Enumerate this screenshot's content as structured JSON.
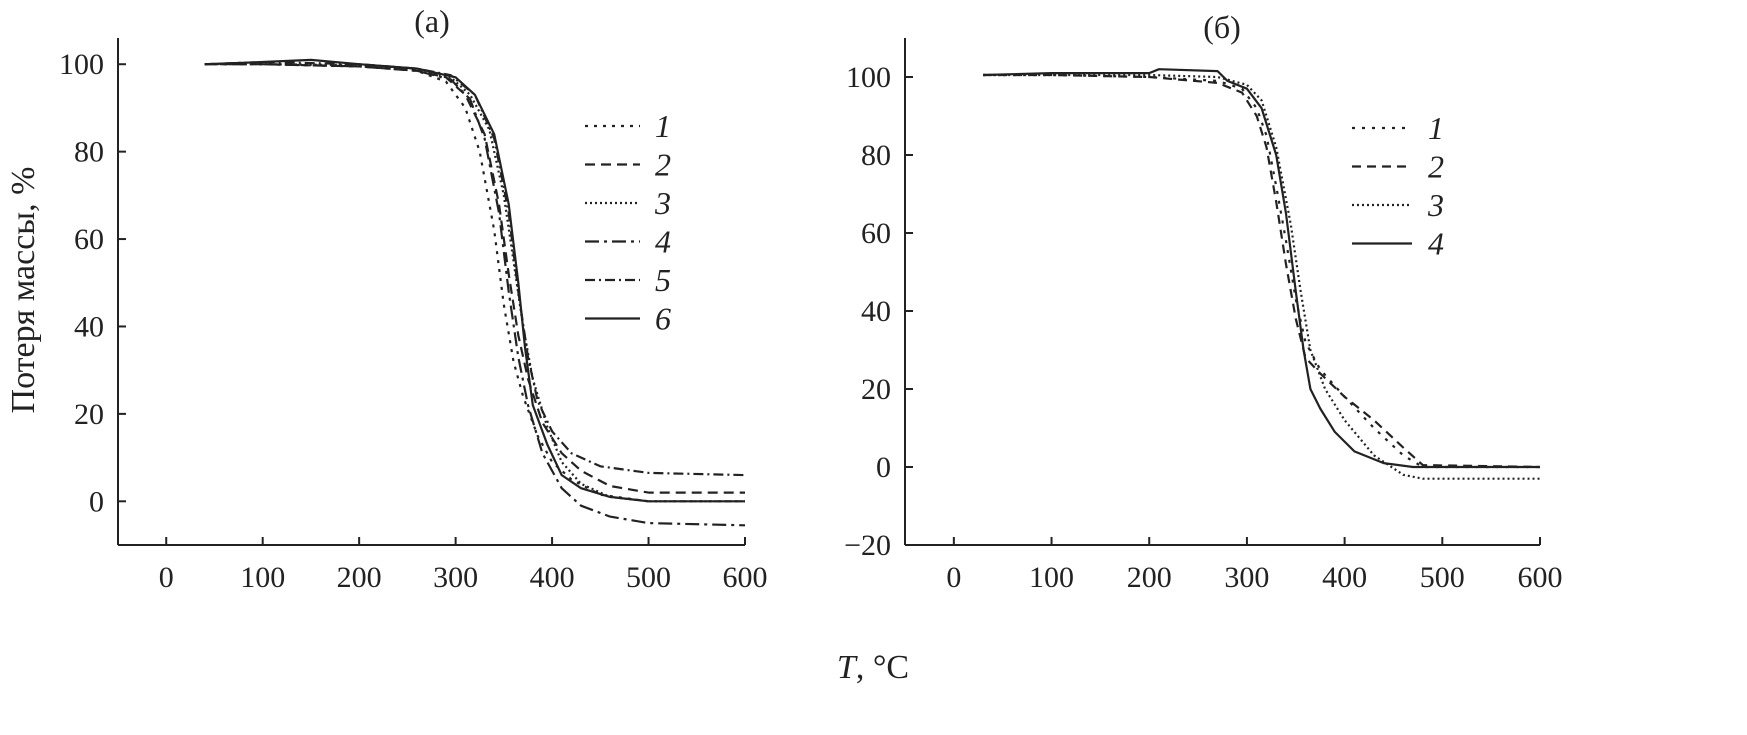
{
  "xlabel_var": "T",
  "xlabel_unit": ", °C",
  "ylabel": "Потеря массы, %",
  "chart_data": [
    {
      "type": "line",
      "panel_label": "(а)",
      "xlim": [
        -50,
        600
      ],
      "ylim": [
        -10,
        106
      ],
      "xticks": [
        0,
        100,
        200,
        300,
        400,
        500,
        600
      ],
      "yticks": [
        0,
        20,
        40,
        60,
        80,
        100
      ],
      "legend_position": "right",
      "series": [
        {
          "name": "1",
          "dash": "3,6",
          "x": [
            40,
            100,
            200,
            260,
            290,
            310,
            325,
            340,
            350,
            360,
            370,
            385,
            400,
            420,
            450,
            500,
            600
          ],
          "y": [
            100,
            100,
            99.5,
            98.5,
            96,
            90,
            80,
            62,
            45,
            32,
            24,
            15,
            9,
            5,
            1.5,
            0,
            0
          ]
        },
        {
          "name": "2",
          "dash": "10,6",
          "x": [
            40,
            100,
            200,
            260,
            290,
            310,
            330,
            345,
            355,
            365,
            375,
            390,
            410,
            430,
            460,
            500,
            600
          ],
          "y": [
            100,
            100,
            99.5,
            98.5,
            97,
            93,
            84,
            68,
            52,
            38,
            28,
            18,
            11,
            7,
            3.5,
            2,
            2
          ]
        },
        {
          "name": "3",
          "dash": "2,3",
          "x": [
            40,
            100,
            200,
            260,
            295,
            315,
            335,
            350,
            360,
            370,
            380,
            395,
            410,
            430,
            460,
            500,
            600
          ],
          "y": [
            100,
            100,
            99.8,
            99,
            97,
            93,
            85,
            70,
            55,
            40,
            28,
            17,
            9,
            4,
            1,
            0,
            0
          ]
        },
        {
          "name": "4",
          "dash": "14,5,3,5",
          "x": [
            40,
            100,
            200,
            260,
            295,
            315,
            330,
            345,
            355,
            365,
            375,
            390,
            410,
            430,
            460,
            500,
            600
          ],
          "y": [
            100,
            100,
            99.5,
            98.5,
            96.5,
            92,
            83,
            66,
            48,
            33,
            22,
            11,
            3,
            -1,
            -3.5,
            -5,
            -5.5
          ]
        },
        {
          "name": "5",
          "dash": "10,4,2,4",
          "x": [
            40,
            100,
            200,
            260,
            295,
            320,
            340,
            355,
            365,
            375,
            385,
            400,
            420,
            450,
            500,
            600
          ],
          "y": [
            100,
            100.5,
            100,
            99,
            97.5,
            93,
            83,
            66,
            48,
            33,
            23,
            16,
            11,
            8,
            6.5,
            6
          ]
        },
        {
          "name": "6",
          "dash": "",
          "x": [
            40,
            100,
            150,
            200,
            260,
            300,
            320,
            340,
            355,
            365,
            372,
            380,
            395,
            410,
            430,
            460,
            500,
            600
          ],
          "y": [
            100,
            100.5,
            101,
            100,
            99,
            97,
            93,
            84,
            68,
            50,
            35,
            22,
            13,
            6,
            3,
            1,
            0,
            0
          ]
        }
      ]
    },
    {
      "type": "line",
      "panel_label": "(б)",
      "xlim": [
        -50,
        600
      ],
      "ylim": [
        -20,
        110
      ],
      "xticks": [
        0,
        100,
        200,
        300,
        400,
        500,
        600
      ],
      "yticks": [
        -20,
        0,
        20,
        40,
        60,
        80,
        100
      ],
      "legend_position": "right",
      "series": [
        {
          "name": "1",
          "dash": "3,7",
          "x": [
            30,
            100,
            200,
            270,
            295,
            310,
            320,
            330,
            340,
            350,
            360,
            375,
            400,
            430,
            460,
            480,
            600
          ],
          "y": [
            100.5,
            100.5,
            100,
            99,
            97,
            92,
            85,
            72,
            58,
            43,
            32,
            25,
            18,
            10,
            3,
            0,
            0
          ]
        },
        {
          "name": "2",
          "dash": "9,6",
          "x": [
            30,
            100,
            200,
            270,
            295,
            310,
            320,
            330,
            340,
            350,
            360,
            375,
            400,
            430,
            460,
            480,
            600
          ],
          "y": [
            100.5,
            100.5,
            100,
            98.5,
            96,
            90,
            82,
            68,
            52,
            38,
            28,
            24,
            18,
            12,
            5,
            0.5,
            0
          ]
        },
        {
          "name": "3",
          "dash": "2,3",
          "x": [
            30,
            100,
            200,
            270,
            300,
            315,
            330,
            345,
            355,
            365,
            380,
            400,
            430,
            460,
            480,
            500,
            600
          ],
          "y": [
            100.5,
            100.5,
            100.5,
            100,
            98,
            94,
            82,
            62,
            45,
            30,
            20,
            12,
            3,
            -2,
            -3,
            -3,
            -3
          ]
        },
        {
          "name": "4",
          "dash": "",
          "x": [
            30,
            100,
            200,
            210,
            270,
            280,
            300,
            315,
            330,
            340,
            350,
            358,
            365,
            375,
            390,
            410,
            440,
            470,
            500,
            600
          ],
          "y": [
            100.5,
            101,
            101,
            102,
            101.5,
            99,
            97,
            92,
            80,
            65,
            45,
            30,
            20,
            15,
            9,
            4,
            1,
            0,
            0,
            0
          ]
        }
      ]
    }
  ]
}
